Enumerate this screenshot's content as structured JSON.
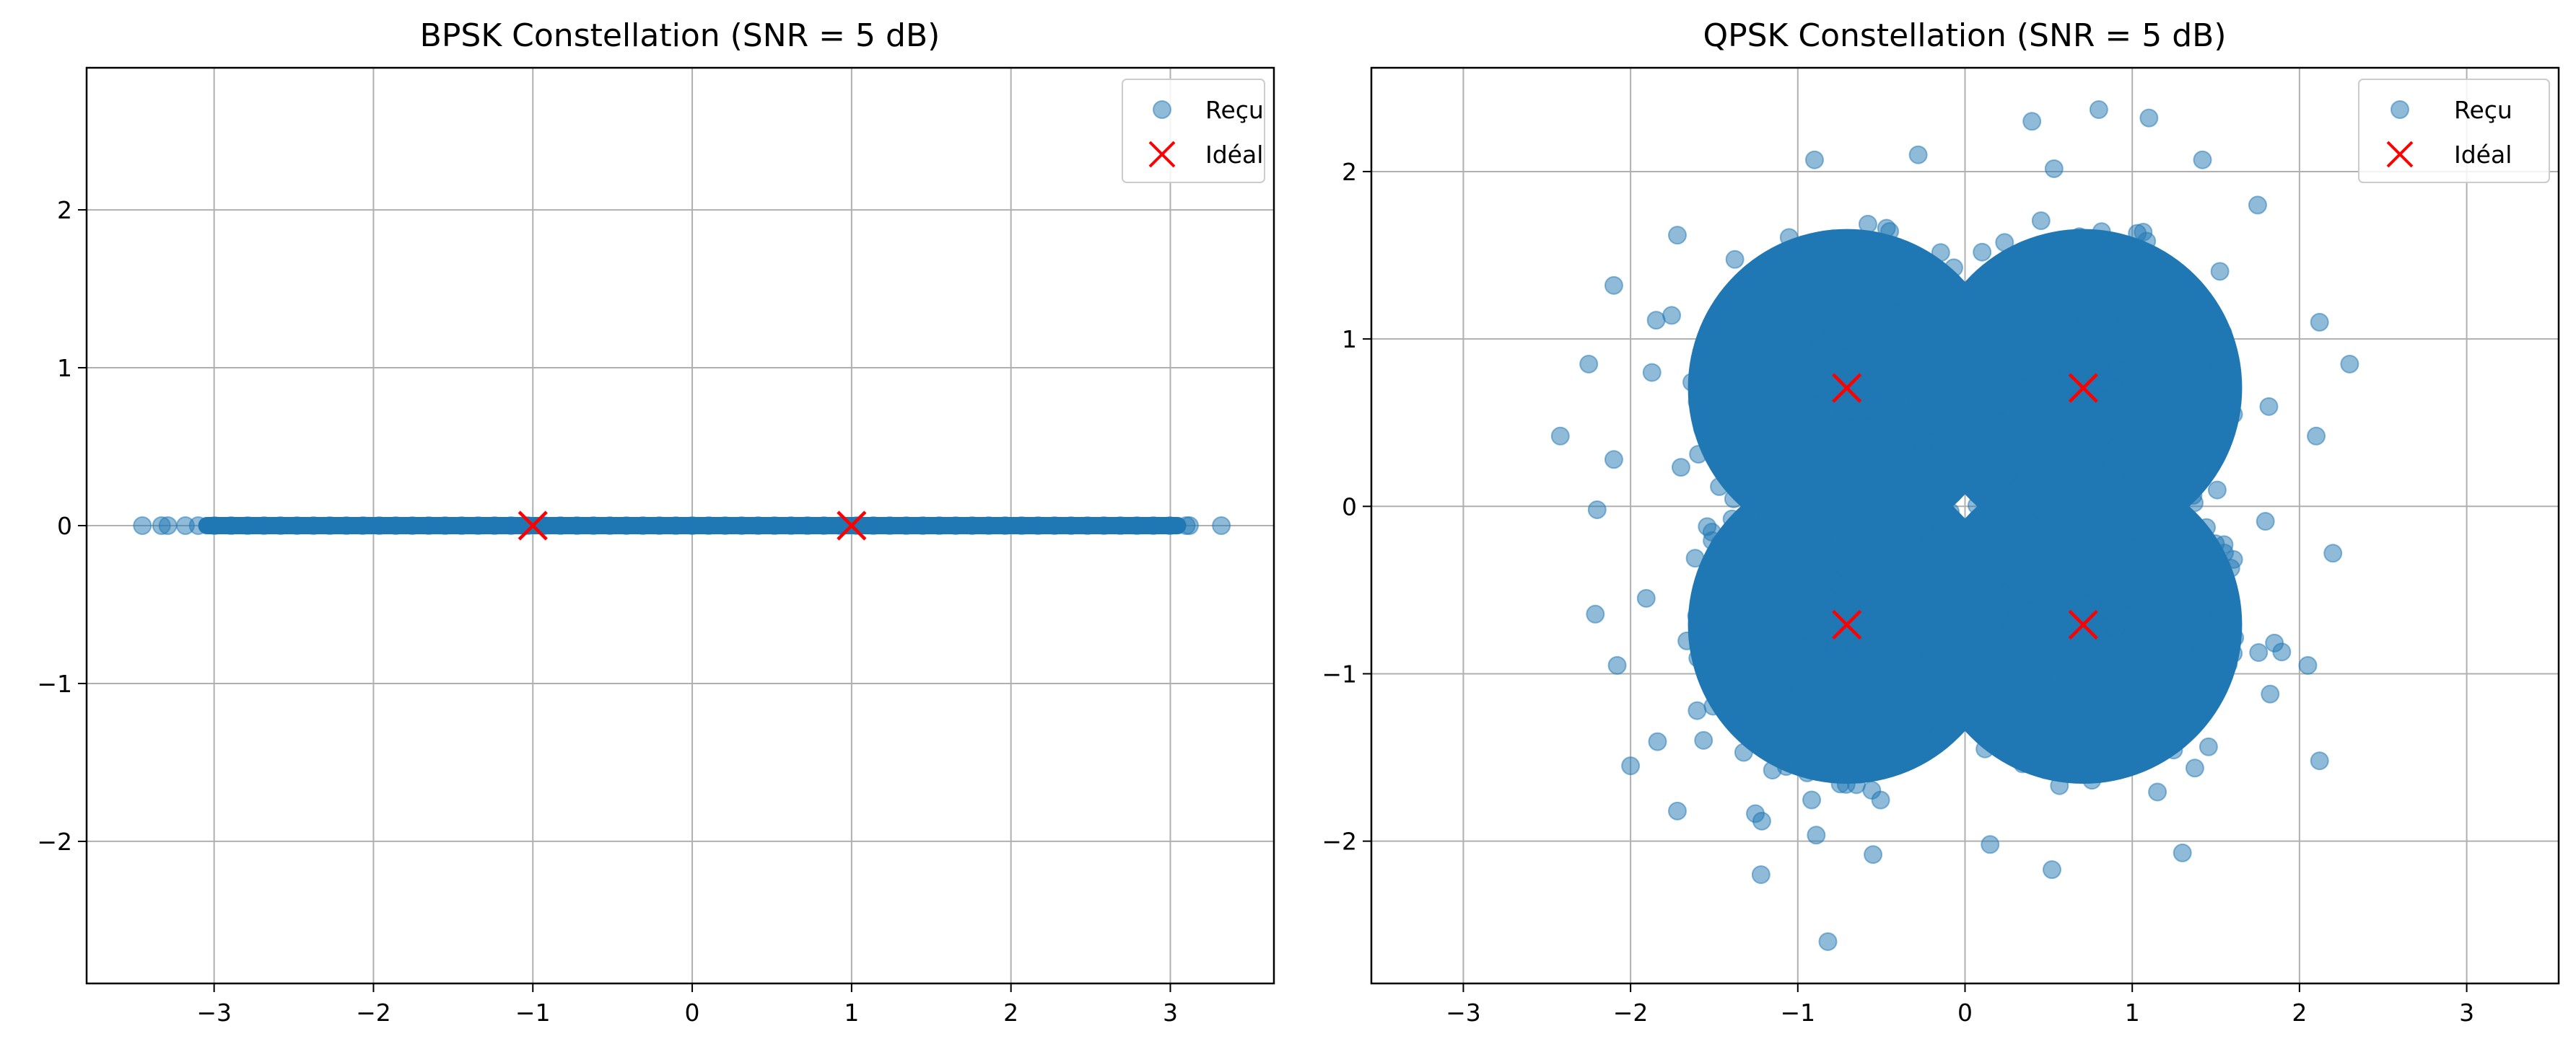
{
  "chart_data": [
    {
      "type": "scatter",
      "title": "BPSK Constellation (SNR = 5 dB)",
      "xlabel": "",
      "ylabel": "",
      "xlim": [
        -3.8,
        3.65
      ],
      "ylim": [
        -2.9,
        2.9
      ],
      "xticks": [
        -3,
        -2,
        -1,
        0,
        1,
        2,
        3
      ],
      "yticks": [
        -2,
        -1,
        0,
        1,
        2
      ],
      "xtick_labels": [
        "−3",
        "−2",
        "−1",
        "0",
        "1",
        "2",
        "3"
      ],
      "ytick_labels": [
        "−2",
        "−1",
        "0",
        "1",
        "2"
      ],
      "grid": true,
      "legend_position": "top-right",
      "series": [
        {
          "name": "Reçu",
          "marker": "circle",
          "color": "#1f77b4",
          "alpha": 0.5,
          "band": {
            "x_range": [
              -3.1,
              3.1
            ],
            "y": 0
          },
          "points": [
            [
              -3.45,
              0
            ],
            [
              -3.33,
              0
            ],
            [
              -3.29,
              0
            ],
            [
              -3.18,
              0
            ],
            [
              3.12,
              0
            ],
            [
              3.32,
              0
            ]
          ]
        },
        {
          "name": "Idéal",
          "marker": "x",
          "color": "#ff0000",
          "points": [
            [
              -1,
              0
            ],
            [
              1,
              0
            ]
          ]
        }
      ]
    },
    {
      "type": "scatter",
      "title": "QPSK Constellation (SNR = 5 dB)",
      "xlabel": "",
      "ylabel": "",
      "xlim": [
        -3.55,
        3.55
      ],
      "ylim": [
        -2.85,
        2.62
      ],
      "xticks": [
        -3,
        -2,
        -1,
        0,
        1,
        2,
        3
      ],
      "yticks": [
        -2,
        -1,
        0,
        1,
        2
      ],
      "xtick_labels": [
        "−3",
        "−2",
        "−1",
        "0",
        "1",
        "2",
        "3"
      ],
      "ytick_labels": [
        "−2",
        "−1",
        "0",
        "1",
        "2"
      ],
      "grid": true,
      "legend_position": "top-right",
      "series": [
        {
          "name": "Reçu",
          "marker": "circle",
          "color": "#1f77b4",
          "alpha": 0.5,
          "clusters": [
            {
              "center": [
                0.707,
                0.707
              ],
              "sigma": 0.4
            },
            {
              "center": [
                -0.707,
                0.707
              ],
              "sigma": 0.4
            },
            {
              "center": [
                -0.707,
                -0.707
              ],
              "sigma": 0.4
            },
            {
              "center": [
                0.707,
                -0.707
              ],
              "sigma": 0.4
            }
          ],
          "outliers": [
            [
              -2.42,
              0.42
            ],
            [
              -0.82,
              -2.6
            ],
            [
              0.8,
              2.37
            ],
            [
              1.1,
              2.32
            ],
            [
              0.4,
              2.3
            ],
            [
              -2.25,
              0.85
            ],
            [
              2.3,
              0.85
            ],
            [
              2.12,
              1.1
            ],
            [
              -2.1,
              1.32
            ],
            [
              -2.0,
              -1.55
            ],
            [
              2.12,
              -1.52
            ],
            [
              -1.22,
              -2.2
            ],
            [
              1.3,
              -2.07
            ],
            [
              -1.72,
              1.62
            ],
            [
              1.75,
              1.8
            ],
            [
              -1.72,
              -1.82
            ],
            [
              2.2,
              -0.28
            ],
            [
              -2.2,
              -0.02
            ],
            [
              -0.28,
              2.1
            ],
            [
              0.15,
              -2.02
            ],
            [
              1.42,
              2.07
            ],
            [
              -0.9,
              2.07
            ],
            [
              2.1,
              0.42
            ],
            [
              -2.08,
              -0.95
            ],
            [
              -2.1,
              0.28
            ],
            [
              2.05,
              -0.95
            ],
            [
              -0.55,
              -2.08
            ],
            [
              0.52,
              -2.17
            ]
          ]
        },
        {
          "name": "Idéal",
          "marker": "x",
          "color": "#ff0000",
          "points": [
            [
              0.707,
              0.707
            ],
            [
              -0.707,
              0.707
            ],
            [
              -0.707,
              -0.707
            ],
            [
              0.707,
              -0.707
            ]
          ]
        }
      ]
    }
  ]
}
